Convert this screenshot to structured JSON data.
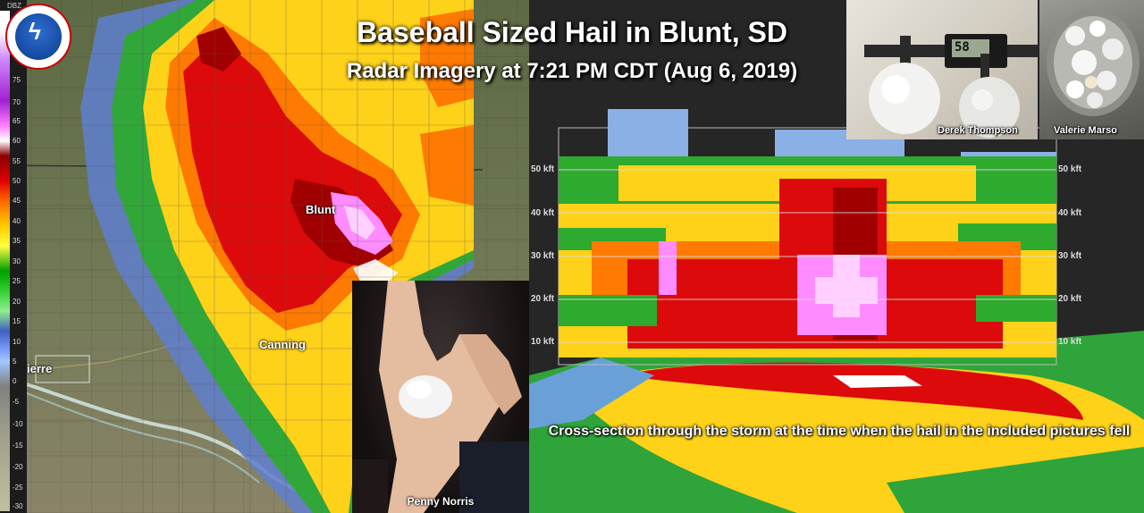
{
  "title": "Baseball Sized Hail in Blunt, SD",
  "subtitle": "Radar Imagery at 7:21 PM CDT (Aug 6, 2019)",
  "logo": {
    "icon": "nws-logo-icon"
  },
  "map": {
    "labels": {
      "blunt": "Blunt",
      "canning": "Canning",
      "pierre": "ierre"
    }
  },
  "scale": {
    "unit": "DBZ",
    "ticks": [
      "75",
      "70",
      "65",
      "60",
      "55",
      "50",
      "45",
      "40",
      "35",
      "30",
      "25",
      "20",
      "15",
      "10",
      "5",
      "0",
      "-5",
      "-10",
      "-15",
      "-20",
      "-25",
      "-30"
    ]
  },
  "photos": {
    "hand_credit": "Penny Norris",
    "caliper_credit": "Derek Thompson",
    "bowl_credit": "Valerie Marso",
    "caliper_reading": "58"
  },
  "cross_section": {
    "altitudes": [
      "50 kft",
      "40 kft",
      "30 kft",
      "20 kft",
      "10 kft"
    ],
    "caption": "Cross-section through the storm at the time when the hail in the included pictures fell"
  },
  "colors": {
    "reflectivity_high": "#e00000",
    "reflectivity_core": "#ff80ff",
    "reflectivity_mid": "#ffcc00",
    "reflectivity_low": "#2eaa2e"
  }
}
